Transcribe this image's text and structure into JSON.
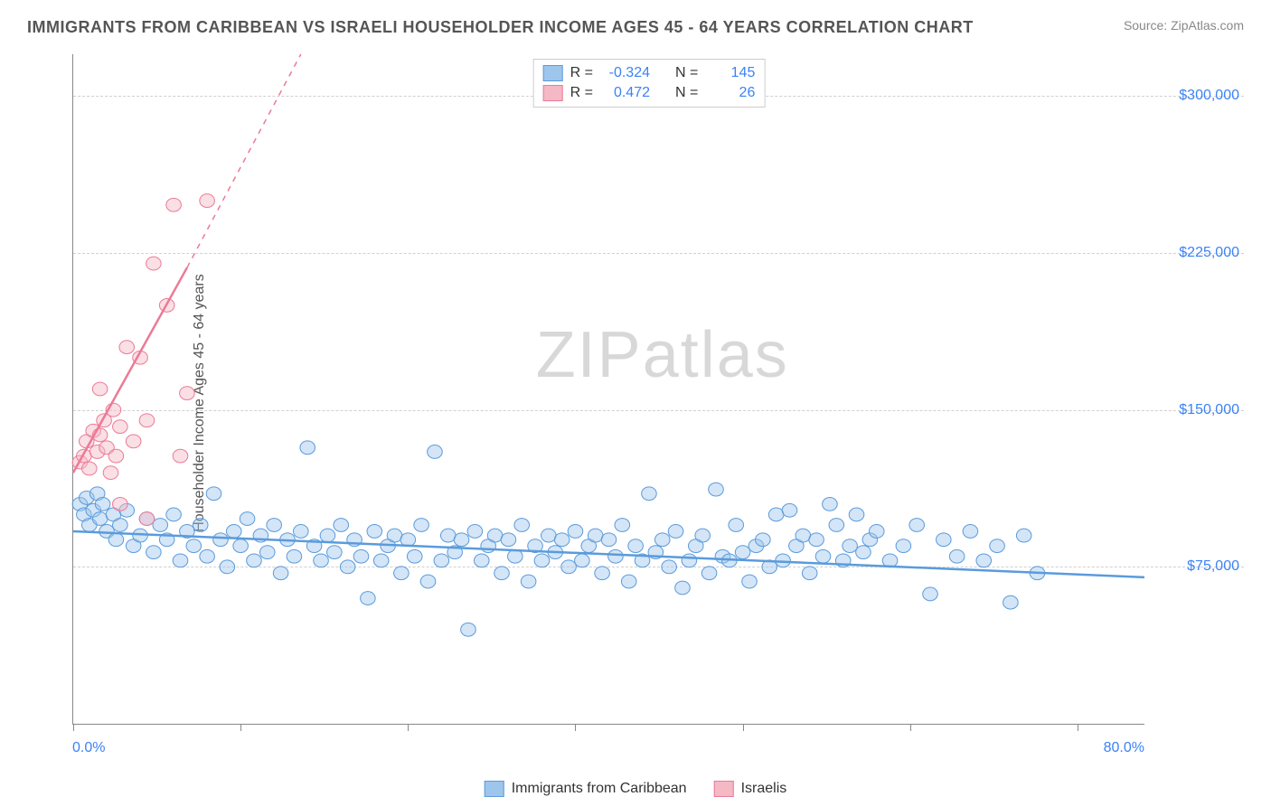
{
  "title": "IMMIGRANTS FROM CARIBBEAN VS ISRAELI HOUSEHOLDER INCOME AGES 45 - 64 YEARS CORRELATION CHART",
  "source": "Source: ZipAtlas.com",
  "watermark_prefix": "ZIP",
  "watermark_suffix": "atlas",
  "y_axis_label": "Householder Income Ages 45 - 64 years",
  "chart": {
    "type": "scatter",
    "background_color": "#ffffff",
    "grid_color": "#d0d0d0",
    "axis_color": "#888888",
    "xlim": [
      0,
      80
    ],
    "ylim": [
      0,
      320000
    ],
    "x_ticks_pct": [
      0,
      12.5,
      25,
      37.5,
      50,
      62.5,
      75
    ],
    "x_label_min": "0.0%",
    "x_label_max": "80.0%",
    "y_gridlines": [
      75000,
      150000,
      225000,
      300000
    ],
    "y_tick_labels": [
      "$75,000",
      "$150,000",
      "$225,000",
      "$300,000"
    ],
    "y_tick_color": "#3b82f6",
    "x_tick_color": "#3b82f6",
    "marker_radius": 7,
    "marker_opacity": 0.45,
    "line_width": 2.5
  },
  "series": [
    {
      "name": "Immigrants from Caribbean",
      "color_fill": "#9ec5ec",
      "color_stroke": "#5a9bdc",
      "stats": {
        "R": "-0.324",
        "N": "145"
      },
      "trend": {
        "x1": 0,
        "y1": 92000,
        "x2": 80,
        "y2": 70000,
        "dashed_extension": false
      },
      "points": [
        [
          0.5,
          105000
        ],
        [
          0.8,
          100000
        ],
        [
          1,
          108000
        ],
        [
          1.2,
          95000
        ],
        [
          1.5,
          102000
        ],
        [
          1.8,
          110000
        ],
        [
          2,
          98000
        ],
        [
          2.2,
          105000
        ],
        [
          2.5,
          92000
        ],
        [
          3,
          100000
        ],
        [
          3.2,
          88000
        ],
        [
          3.5,
          95000
        ],
        [
          4,
          102000
        ],
        [
          4.5,
          85000
        ],
        [
          5,
          90000
        ],
        [
          5.5,
          98000
        ],
        [
          6,
          82000
        ],
        [
          6.5,
          95000
        ],
        [
          7,
          88000
        ],
        [
          7.5,
          100000
        ],
        [
          8,
          78000
        ],
        [
          8.5,
          92000
        ],
        [
          9,
          85000
        ],
        [
          9.5,
          95000
        ],
        [
          10,
          80000
        ],
        [
          10.5,
          110000
        ],
        [
          11,
          88000
        ],
        [
          11.5,
          75000
        ],
        [
          12,
          92000
        ],
        [
          12.5,
          85000
        ],
        [
          13,
          98000
        ],
        [
          13.5,
          78000
        ],
        [
          14,
          90000
        ],
        [
          14.5,
          82000
        ],
        [
          15,
          95000
        ],
        [
          15.5,
          72000
        ],
        [
          16,
          88000
        ],
        [
          16.5,
          80000
        ],
        [
          17,
          92000
        ],
        [
          17.5,
          132000
        ],
        [
          18,
          85000
        ],
        [
          18.5,
          78000
        ],
        [
          19,
          90000
        ],
        [
          19.5,
          82000
        ],
        [
          20,
          95000
        ],
        [
          20.5,
          75000
        ],
        [
          21,
          88000
        ],
        [
          21.5,
          80000
        ],
        [
          22,
          60000
        ],
        [
          22.5,
          92000
        ],
        [
          23,
          78000
        ],
        [
          23.5,
          85000
        ],
        [
          24,
          90000
        ],
        [
          24.5,
          72000
        ],
        [
          25,
          88000
        ],
        [
          25.5,
          80000
        ],
        [
          26,
          95000
        ],
        [
          26.5,
          68000
        ],
        [
          27,
          130000
        ],
        [
          27.5,
          78000
        ],
        [
          28,
          90000
        ],
        [
          28.5,
          82000
        ],
        [
          29,
          88000
        ],
        [
          29.5,
          45000
        ],
        [
          30,
          92000
        ],
        [
          30.5,
          78000
        ],
        [
          31,
          85000
        ],
        [
          31.5,
          90000
        ],
        [
          32,
          72000
        ],
        [
          32.5,
          88000
        ],
        [
          33,
          80000
        ],
        [
          33.5,
          95000
        ],
        [
          34,
          68000
        ],
        [
          34.5,
          85000
        ],
        [
          35,
          78000
        ],
        [
          35.5,
          90000
        ],
        [
          36,
          82000
        ],
        [
          36.5,
          88000
        ],
        [
          37,
          75000
        ],
        [
          37.5,
          92000
        ],
        [
          38,
          78000
        ],
        [
          38.5,
          85000
        ],
        [
          39,
          90000
        ],
        [
          39.5,
          72000
        ],
        [
          40,
          88000
        ],
        [
          40.5,
          80000
        ],
        [
          41,
          95000
        ],
        [
          41.5,
          68000
        ],
        [
          42,
          85000
        ],
        [
          42.5,
          78000
        ],
        [
          43,
          110000
        ],
        [
          43.5,
          82000
        ],
        [
          44,
          88000
        ],
        [
          44.5,
          75000
        ],
        [
          45,
          92000
        ],
        [
          45.5,
          65000
        ],
        [
          46,
          78000
        ],
        [
          46.5,
          85000
        ],
        [
          47,
          90000
        ],
        [
          47.5,
          72000
        ],
        [
          48,
          112000
        ],
        [
          48.5,
          80000
        ],
        [
          49,
          78000
        ],
        [
          49.5,
          95000
        ],
        [
          50,
          82000
        ],
        [
          50.5,
          68000
        ],
        [
          51,
          85000
        ],
        [
          51.5,
          88000
        ],
        [
          52,
          75000
        ],
        [
          52.5,
          100000
        ],
        [
          53,
          78000
        ],
        [
          53.5,
          102000
        ],
        [
          54,
          85000
        ],
        [
          54.5,
          90000
        ],
        [
          55,
          72000
        ],
        [
          55.5,
          88000
        ],
        [
          56,
          80000
        ],
        [
          56.5,
          105000
        ],
        [
          57,
          95000
        ],
        [
          57.5,
          78000
        ],
        [
          58,
          85000
        ],
        [
          58.5,
          100000
        ],
        [
          59,
          82000
        ],
        [
          59.5,
          88000
        ],
        [
          60,
          92000
        ],
        [
          61,
          78000
        ],
        [
          62,
          85000
        ],
        [
          63,
          95000
        ],
        [
          64,
          62000
        ],
        [
          65,
          88000
        ],
        [
          66,
          80000
        ],
        [
          67,
          92000
        ],
        [
          68,
          78000
        ],
        [
          69,
          85000
        ],
        [
          70,
          58000
        ],
        [
          71,
          90000
        ],
        [
          72,
          72000
        ]
      ]
    },
    {
      "name": "Israelis",
      "color_fill": "#f5b8c5",
      "color_stroke": "#eb7a95",
      "stats": {
        "R": "0.472",
        "N": "26"
      },
      "trend": {
        "x1": 0,
        "y1": 120000,
        "x2": 8.5,
        "y2": 218000,
        "dashed_extension": true,
        "dash_x2": 17,
        "dash_y2": 320000
      },
      "points": [
        [
          0.5,
          125000
        ],
        [
          0.8,
          128000
        ],
        [
          1,
          135000
        ],
        [
          1.2,
          122000
        ],
        [
          1.5,
          140000
        ],
        [
          1.8,
          130000
        ],
        [
          2,
          160000
        ],
        [
          2,
          138000
        ],
        [
          2.3,
          145000
        ],
        [
          2.5,
          132000
        ],
        [
          2.8,
          120000
        ],
        [
          3,
          150000
        ],
        [
          3.2,
          128000
        ],
        [
          3.5,
          142000
        ],
        [
          3.5,
          105000
        ],
        [
          4,
          180000
        ],
        [
          4.5,
          135000
        ],
        [
          5,
          175000
        ],
        [
          5.5,
          145000
        ],
        [
          5.5,
          98000
        ],
        [
          6,
          220000
        ],
        [
          7,
          200000
        ],
        [
          7.5,
          248000
        ],
        [
          8,
          128000
        ],
        [
          8.5,
          158000
        ],
        [
          10,
          250000
        ]
      ]
    }
  ],
  "legend_top": {
    "R_label": "R =",
    "N_label": "N ="
  },
  "legend_bottom": {
    "items": [
      "Immigrants from Caribbean",
      "Israelis"
    ]
  }
}
